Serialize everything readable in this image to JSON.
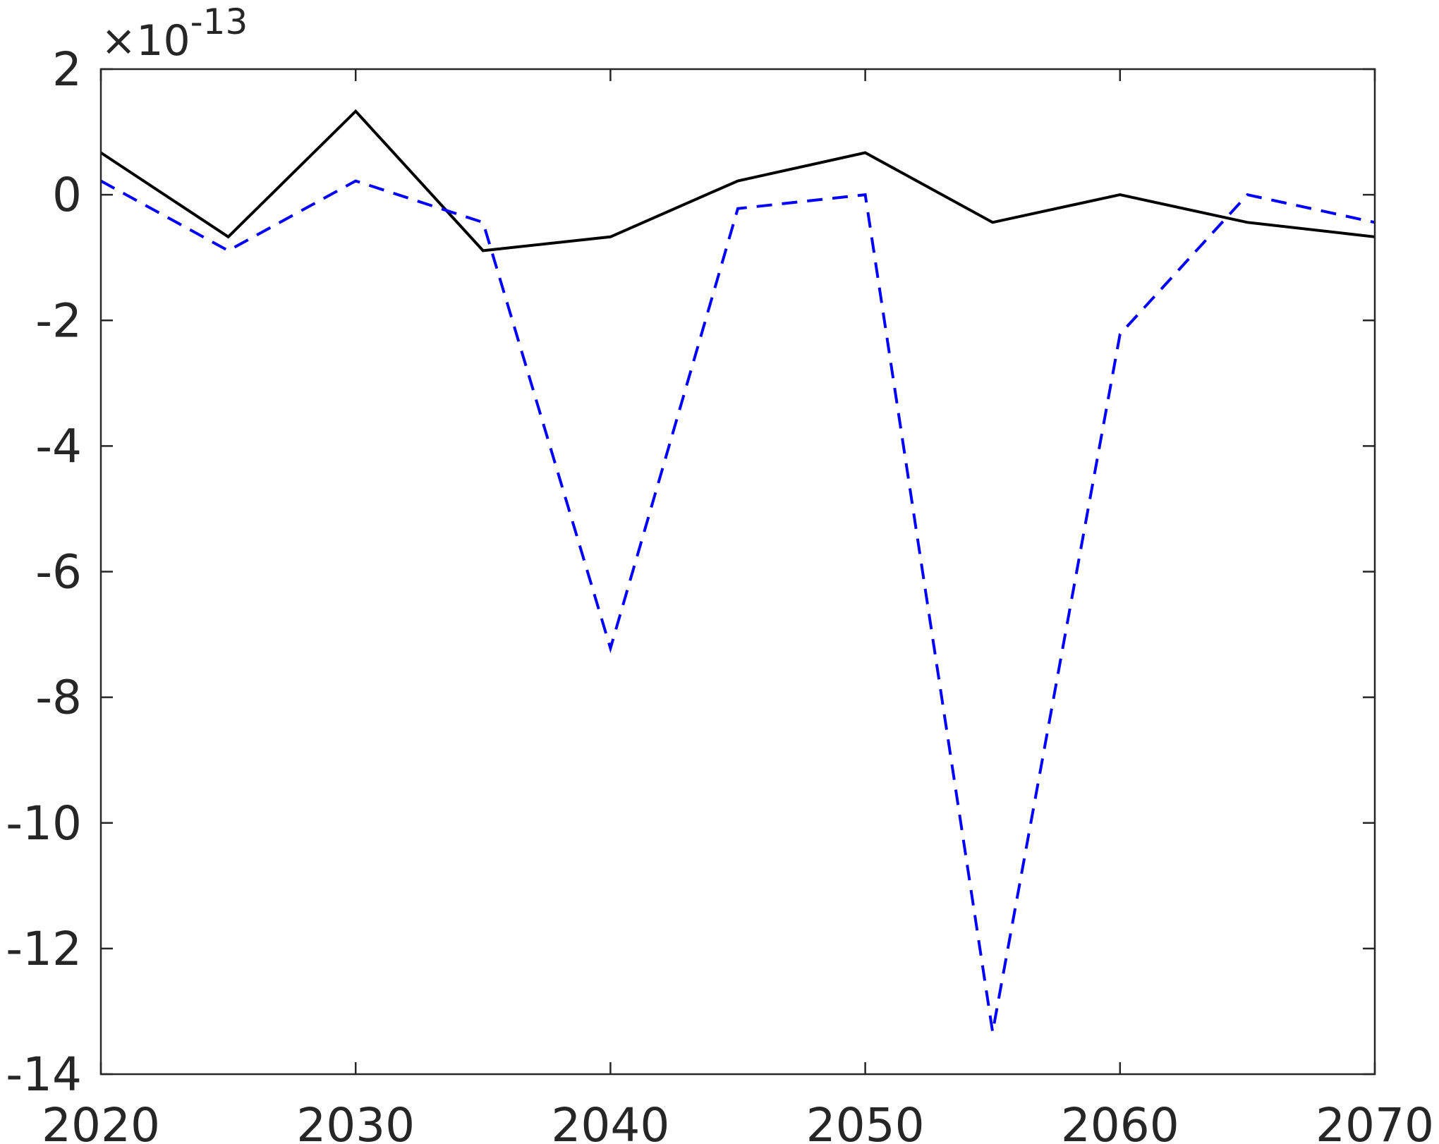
{
  "chart_data": {
    "type": "line",
    "title": "",
    "xlabel": "",
    "ylabel": "",
    "x": [
      2020,
      2025,
      2030,
      2035,
      2040,
      2045,
      2050,
      2055,
      2060,
      2065,
      2070
    ],
    "xlim": [
      2020,
      2070
    ],
    "ylim": [
      -14,
      2
    ],
    "y_exponent_label": {
      "times": "×10",
      "power": "-13"
    },
    "xticks": [
      2020,
      2030,
      2040,
      2050,
      2060,
      2070
    ],
    "xtick_labels": [
      "2020",
      "2030",
      "2040",
      "2050",
      "2060",
      "2070"
    ],
    "yticks": [
      2,
      0,
      -2,
      -4,
      -6,
      -8,
      -10,
      -12,
      -14
    ],
    "ytick_labels": [
      "2",
      "0",
      "-2",
      "-4",
      "-6",
      "-8",
      "-10",
      "-12",
      "-14"
    ],
    "grid": false,
    "series": [
      {
        "style": "solid",
        "color": "#000000",
        "values": [
          0.67,
          -0.67,
          1.33,
          -0.89,
          -0.67,
          0.22,
          0.67,
          -0.44,
          0.0,
          -0.44,
          -0.67
        ]
      },
      {
        "style": "dashed",
        "color": "#0000ff",
        "values": [
          0.22,
          -0.89,
          0.22,
          -0.44,
          -7.22,
          -0.22,
          0.0,
          -13.33,
          -2.22,
          0.0,
          -0.44
        ]
      }
    ]
  }
}
